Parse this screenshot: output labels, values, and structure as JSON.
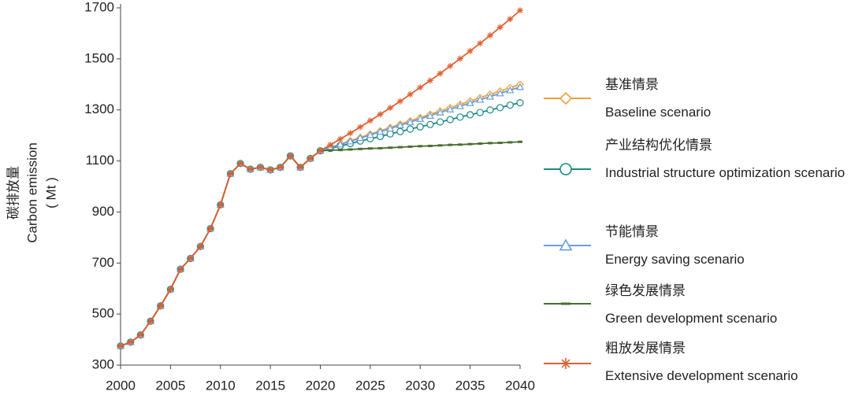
{
  "chart_data": {
    "type": "line",
    "y_label": [
      "碳排放量",
      "Carbon emission",
      "( Mt )"
    ],
    "x": [
      2000,
      2001,
      2002,
      2003,
      2004,
      2005,
      2006,
      2007,
      2008,
      2009,
      2010,
      2011,
      2012,
      2013,
      2014,
      2015,
      2016,
      2017,
      2018,
      2019,
      2020,
      2021,
      2022,
      2023,
      2024,
      2025,
      2026,
      2027,
      2028,
      2029,
      2030,
      2031,
      2032,
      2033,
      2034,
      2035,
      2036,
      2037,
      2038,
      2039,
      2040
    ],
    "xlim": [
      2000,
      2040
    ],
    "xticks": [
      2000,
      2005,
      2010,
      2015,
      2020,
      2025,
      2030,
      2035,
      2040
    ],
    "ylim": [
      300,
      1700
    ],
    "yticks": [
      300,
      500,
      700,
      900,
      1100,
      1300,
      1500,
      1700
    ],
    "series": [
      {
        "name": "Baseline scenario",
        "name_zh": "基准情景",
        "color": "#f0a040",
        "marker": "diamond",
        "values": [
          375,
          390,
          418,
          472,
          532,
          597,
          676,
          718,
          765,
          835,
          928,
          1050,
          1090,
          1068,
          1075,
          1065,
          1075,
          1120,
          1075,
          1110,
          1140,
          1153,
          1166,
          1179,
          1192,
          1205,
          1218,
          1231,
          1244,
          1257,
          1270,
          1283,
          1296,
          1309,
          1322,
          1335,
          1348,
          1361,
          1374,
          1387,
          1400
        ]
      },
      {
        "name": "Industrial structure optimization scenario",
        "name_zh": "产业结构优化情景",
        "color": "#1a8a86",
        "marker": "circle",
        "values": [
          375,
          390,
          418,
          472,
          532,
          597,
          676,
          718,
          765,
          835,
          928,
          1050,
          1090,
          1068,
          1075,
          1065,
          1075,
          1120,
          1075,
          1110,
          1140,
          1149,
          1159,
          1168,
          1178,
          1187,
          1196,
          1206,
          1215,
          1225,
          1234,
          1243,
          1253,
          1262,
          1272,
          1281,
          1290,
          1300,
          1309,
          1319,
          1328
        ]
      },
      {
        "name": "Energy saving scenario",
        "name_zh": "节能情景",
        "color": "#6a9fd8",
        "marker": "triangle",
        "values": [
          375,
          390,
          418,
          472,
          532,
          597,
          676,
          718,
          765,
          835,
          928,
          1050,
          1090,
          1068,
          1075,
          1065,
          1075,
          1120,
          1075,
          1110,
          1140,
          1152,
          1165,
          1177,
          1190,
          1202,
          1215,
          1227,
          1240,
          1252,
          1265,
          1277,
          1290,
          1302,
          1315,
          1327,
          1340,
          1352,
          1365,
          1377,
          1390
        ]
      },
      {
        "name": "Green development scenario",
        "name_zh": "绿色发展情景",
        "color": "#4a6e30",
        "marker": "dash",
        "values": [
          375,
          390,
          418,
          472,
          532,
          597,
          676,
          718,
          765,
          835,
          928,
          1050,
          1090,
          1068,
          1075,
          1065,
          1075,
          1120,
          1075,
          1110,
          1140,
          1142,
          1143,
          1145,
          1147,
          1149,
          1150,
          1152,
          1154,
          1156,
          1158,
          1159,
          1161,
          1163,
          1164,
          1166,
          1168,
          1170,
          1171,
          1173,
          1175
        ]
      },
      {
        "name": "Extensive development scenario",
        "name_zh": "粗放发展情景",
        "color": "#e06030",
        "marker": "asterisk",
        "values": [
          375,
          390,
          418,
          472,
          532,
          597,
          676,
          718,
          765,
          835,
          928,
          1050,
          1090,
          1068,
          1075,
          1065,
          1075,
          1120,
          1075,
          1110,
          1140,
          1163,
          1186,
          1209,
          1233,
          1258,
          1283,
          1308,
          1334,
          1361,
          1388,
          1415,
          1443,
          1472,
          1501,
          1531,
          1561,
          1592,
          1624,
          1656,
          1690
        ]
      }
    ]
  }
}
